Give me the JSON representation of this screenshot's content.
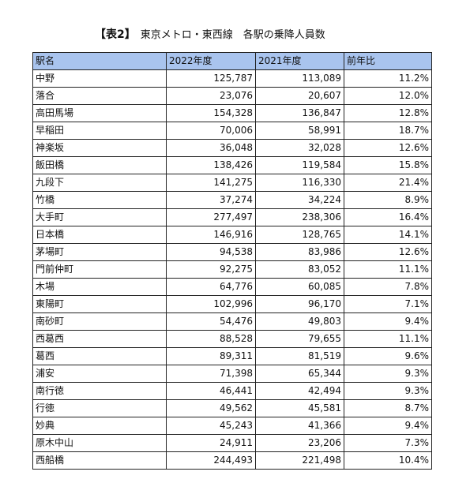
{
  "title": {
    "tag": "【表2】",
    "text": "東京メトロ・東西線　各駅の乗降人員数"
  },
  "table": {
    "headers": [
      "駅名",
      "2022年度",
      "2021年度",
      "前年比"
    ],
    "header_color": "#a9c4ee",
    "rows": [
      [
        "中野",
        "125,787",
        "113,089",
        "11.2%"
      ],
      [
        "落合",
        "23,076",
        "20,607",
        "12.0%"
      ],
      [
        "高田馬場",
        "154,328",
        "136,847",
        "12.8%"
      ],
      [
        "早稲田",
        "70,006",
        "58,991",
        "18.7%"
      ],
      [
        "神楽坂",
        "36,048",
        "32,028",
        "12.6%"
      ],
      [
        "飯田橋",
        "138,426",
        "119,584",
        "15.8%"
      ],
      [
        "九段下",
        "141,275",
        "116,330",
        "21.4%"
      ],
      [
        "竹橋",
        "37,274",
        "34,224",
        "8.9%"
      ],
      [
        "大手町",
        "277,497",
        "238,306",
        "16.4%"
      ],
      [
        "日本橋",
        "146,916",
        "128,765",
        "14.1%"
      ],
      [
        "茅場町",
        "94,538",
        "83,986",
        "12.6%"
      ],
      [
        "門前仲町",
        "92,275",
        "83,052",
        "11.1%"
      ],
      [
        "木場",
        "64,776",
        "60,085",
        "7.8%"
      ],
      [
        "東陽町",
        "102,996",
        "96,170",
        "7.1%"
      ],
      [
        "南砂町",
        "54,476",
        "49,803",
        "9.4%"
      ],
      [
        "西葛西",
        "88,528",
        "79,655",
        "11.1%"
      ],
      [
        "葛西",
        "89,311",
        "81,519",
        "9.6%"
      ],
      [
        "浦安",
        "71,398",
        "65,344",
        "9.3%"
      ],
      [
        "南行徳",
        "46,441",
        "42,494",
        "9.3%"
      ],
      [
        "行徳",
        "49,562",
        "45,581",
        "8.7%"
      ],
      [
        "妙典",
        "45,243",
        "41,366",
        "9.4%"
      ],
      [
        "原木中山",
        "24,911",
        "23,206",
        "7.3%"
      ],
      [
        "西船橋",
        "244,493",
        "221,498",
        "10.4%"
      ]
    ]
  }
}
